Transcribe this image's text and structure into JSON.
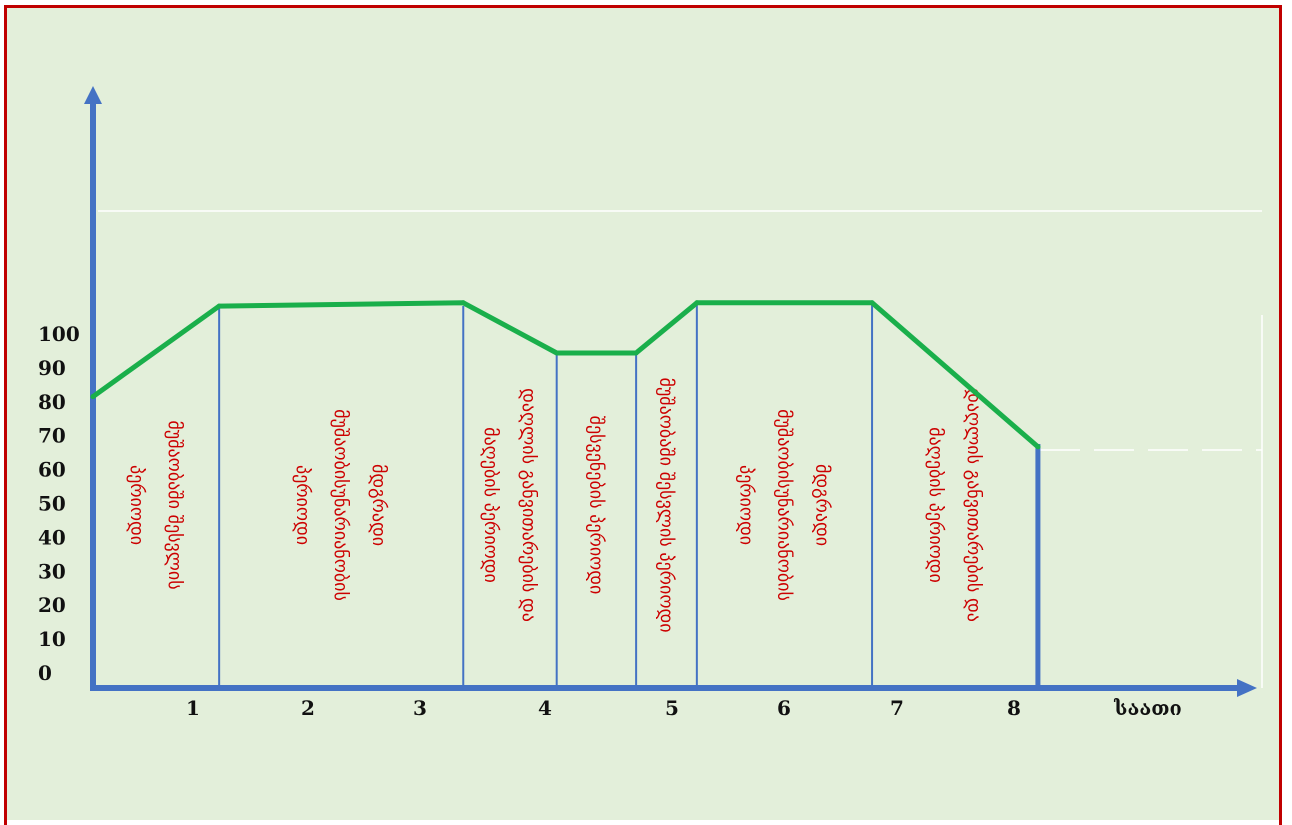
{
  "chart_data": {
    "type": "line",
    "title": "",
    "xlabel": "საათი",
    "ylabel": "",
    "y_ticks": [
      "100",
      "90",
      "80",
      "70",
      "60",
      "50",
      "40",
      "30",
      "20",
      "10",
      "0"
    ],
    "x_ticks": [
      "1",
      "2",
      "3",
      "4",
      "5",
      "6",
      "7",
      "8"
    ],
    "xlim": [
      0,
      8
    ],
    "ylim": [
      0,
      120
    ],
    "series": [
      {
        "x": [
          0,
          1.08,
          3.17,
          3.97,
          4.65,
          5.17,
          6.67,
          8.09
        ],
        "y": [
          87,
          114,
          115,
          100,
          100,
          115,
          115,
          72
        ]
      }
    ],
    "boundaries": [
      1.08,
      3.17,
      3.97,
      4.65,
      5.17,
      6.67,
      8.09
    ],
    "periods": [
      {
        "start": 0,
        "end": 1.08,
        "lines": [
          "მუშაობაში შესვლის",
          "პერიოდი"
        ]
      },
      {
        "start": 1.08,
        "end": 3.17,
        "lines": [
          "მდგრადი",
          "მუშაობისუნარიანობის",
          "პერიოდი"
        ]
      },
      {
        "start": 3.17,
        "end": 3.97,
        "lines": [
          "დაღლის განვითარების და",
          "მაღების პერიოდი"
        ]
      },
      {
        "start": 3.97,
        "end": 4.65,
        "lines": [
          "შესვენების პერიოდი"
        ]
      },
      {
        "start": 4.65,
        "end": 5.17,
        "lines": [
          "მუშაობაში შესვლის პერიოდი"
        ]
      },
      {
        "start": 5.17,
        "end": 6.67,
        "lines": [
          "მდგრადი",
          "მუშაობისუნარიანობის",
          "პერიოდი"
        ]
      },
      {
        "start": 6.67,
        "end": 8.09,
        "lines": [
          "დაღლის განვითარების და",
          "მაღების პერიოდი"
        ]
      }
    ],
    "grid": false,
    "colors": {
      "line": "#1aaf4b",
      "axis": "#4472c4",
      "label": "#cc0000",
      "background": "#e3efda",
      "frame": "#c00000"
    }
  }
}
